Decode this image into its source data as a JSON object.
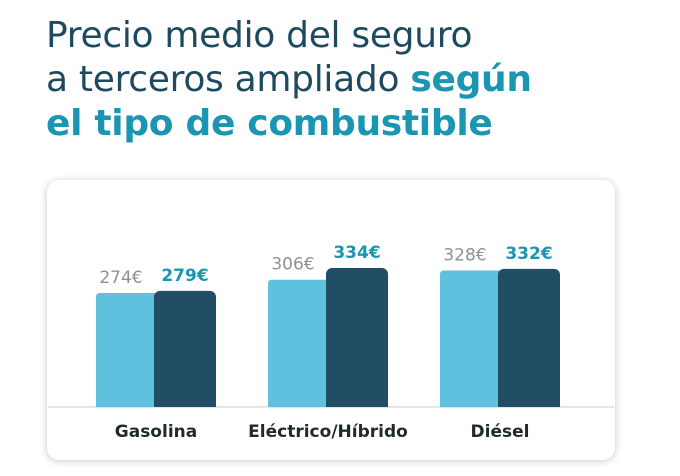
{
  "title": {
    "line1": "Precio medio del seguro",
    "line2_plain": "a terceros ampliado ",
    "line2_highlight": "según",
    "line3_highlight": "el tipo de combustible"
  },
  "colors": {
    "title": "#1e4a5f",
    "highlight": "#1a95b2",
    "series_light": "#5fc1dd",
    "series_dark": "#214e65"
  },
  "chart_data": {
    "type": "bar",
    "categories": [
      "Gasolina",
      "Eléctrico/Híbrido",
      "Diésel"
    ],
    "series": [
      {
        "values": [
          274,
          306,
          328
        ],
        "labels": [
          "274€",
          "306€",
          "328€"
        ]
      },
      {
        "values": [
          279,
          334,
          332
        ],
        "labels": [
          "279€",
          "334€",
          "332€"
        ]
      }
    ],
    "ylim": [
      0,
      380
    ],
    "grid": false,
    "legend": "none"
  }
}
